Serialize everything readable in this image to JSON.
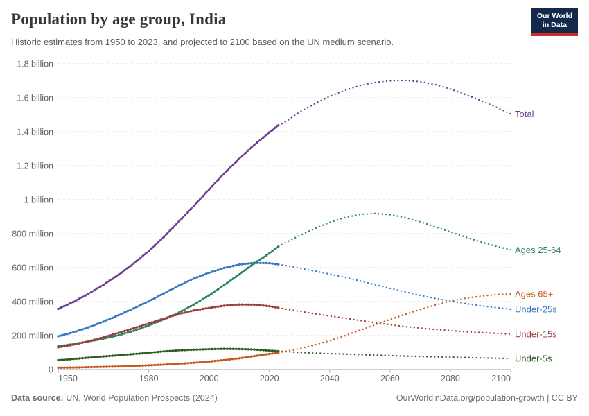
{
  "header": {
    "title": "Population by age group, India",
    "subtitle": "Historic estimates from 1950 to 2023, and projected to 2100 based on the UN medium scenario.",
    "logo": {
      "line1": "Our World",
      "line2": "in Data"
    }
  },
  "footer": {
    "source_label": "Data source:",
    "source_text": " UN, World Population Prospects (2024)",
    "credit": "OurWorldinData.org/population-growth | CC BY"
  },
  "colors": {
    "logo_navy": "#12294B",
    "logo_red": "#CE2C2C",
    "gridline": "#D9D9D9",
    "axis": "#A3A3A3",
    "tick_label": "#636363"
  },
  "chart_data": {
    "type": "line",
    "title": "Population by age group, India",
    "subtitle": "Historic estimates from 1950 to 2023, and projected to 2100 based on the UN medium scenario.",
    "unit": "people",
    "grid": "horizontal-dashed",
    "legend_position": "right-edge-labels",
    "projection_start_year": 2023,
    "x_axis": {
      "range": [
        1950,
        2100
      ],
      "ticks": [
        1950,
        1980,
        2000,
        2020,
        2040,
        2060,
        2080,
        2100
      ]
    },
    "y_axis": {
      "range_millions": [
        0,
        1800
      ],
      "ticks": [
        {
          "value": 1800,
          "label": "1.8 billion"
        },
        {
          "value": 1600,
          "label": "1.6 billion"
        },
        {
          "value": 1400,
          "label": "1.4 billion"
        },
        {
          "value": 1200,
          "label": "1.2 billion"
        },
        {
          "value": 1000,
          "label": "1 billion"
        },
        {
          "value": 800,
          "label": "800 million"
        },
        {
          "value": 600,
          "label": "600 million"
        },
        {
          "value": 400,
          "label": "400 million"
        },
        {
          "value": 200,
          "label": "200 million"
        },
        {
          "value": 0,
          "label": "0"
        }
      ]
    },
    "years": [
      1950,
      1955,
      1960,
      1965,
      1970,
      1975,
      1980,
      1985,
      1990,
      1995,
      2000,
      2005,
      2010,
      2015,
      2020,
      2023,
      2025,
      2030,
      2035,
      2040,
      2045,
      2050,
      2055,
      2060,
      2065,
      2070,
      2075,
      2080,
      2085,
      2090,
      2095,
      2100
    ],
    "values_unit": "millions",
    "series": [
      {
        "name": "total",
        "label": "Total",
        "color": "#6D3E91",
        "values": [
          357,
          398,
          446,
          499,
          558,
          624,
          697,
          781,
          871,
          964,
          1060,
          1154,
          1241,
          1323,
          1396,
          1438,
          1455,
          1515,
          1565,
          1608,
          1644,
          1672,
          1690,
          1700,
          1702,
          1695,
          1678,
          1652,
          1620,
          1584,
          1547,
          1505
        ]
      },
      {
        "name": "under-25s",
        "label": "Under-25s",
        "color": "#3779C2",
        "values": [
          196,
          219,
          248,
          282,
          320,
          360,
          402,
          448,
          494,
          536,
          570,
          598,
          618,
          628,
          626,
          619,
          613,
          597,
          580,
          562,
          543,
          522,
          500,
          478,
          457,
          437,
          419,
          402,
          388,
          376,
          365,
          355
        ]
      },
      {
        "name": "ages-25-64",
        "label": "Ages 25-64",
        "color": "#2C8465",
        "values": [
          137,
          150,
          165,
          182,
          202,
          228,
          259,
          295,
          335,
          383,
          437,
          497,
          560,
          625,
          684,
          724,
          744,
          789,
          830,
          866,
          895,
          913,
          919,
          912,
          895,
          870,
          841,
          810,
          780,
          752,
          727,
          705
        ]
      },
      {
        "name": "under-15s",
        "label": "Under-15s",
        "color": "#9E3C3E",
        "values": [
          131,
          146,
          166,
          190,
          216,
          243,
          271,
          300,
          327,
          348,
          363,
          376,
          383,
          382,
          373,
          364,
          357,
          343,
          329,
          316,
          302,
          289,
          276,
          264,
          253,
          244,
          236,
          229,
          223,
          218,
          213,
          209
        ]
      },
      {
        "name": "under-5s",
        "label": "Under-5s",
        "color": "#2E5E24",
        "values": [
          55,
          62,
          70,
          77,
          84,
          91,
          99,
          107,
          113,
          117,
          120,
          122,
          121,
          118,
          112,
          108,
          106,
          101,
          97,
          94,
          91,
          88,
          85,
          82,
          79,
          77,
          75,
          73,
          71,
          69,
          67,
          65
        ]
      },
      {
        "name": "ages-65-plus",
        "label": "Ages 65+",
        "color": "#C45A1D",
        "values": [
          11,
          12,
          14,
          16,
          18,
          21,
          25,
          29,
          34,
          40,
          47,
          56,
          66,
          79,
          92,
          100,
          106,
          123,
          145,
          170,
          199,
          231,
          263,
          295,
          325,
          353,
          380,
          403,
          420,
          432,
          441,
          446
        ]
      }
    ]
  }
}
